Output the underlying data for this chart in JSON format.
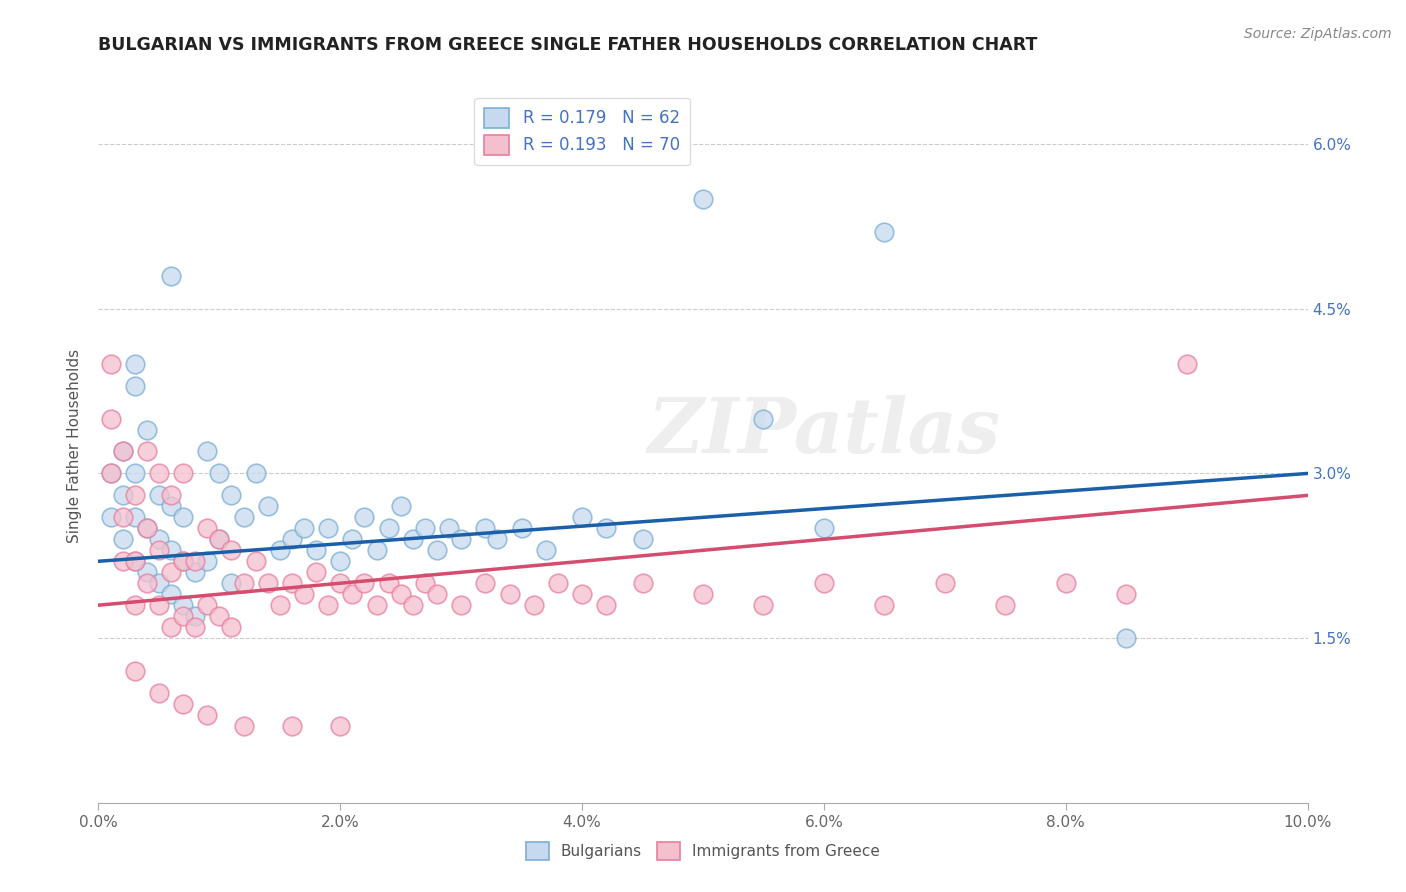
{
  "title": "BULGARIAN VS IMMIGRANTS FROM GREECE SINGLE FATHER HOUSEHOLDS CORRELATION CHART",
  "source": "Source: ZipAtlas.com",
  "ylabel": "Single Father Households",
  "xlim": [
    0.0,
    0.1
  ],
  "ylim": [
    0.0,
    0.065
  ],
  "xticks": [
    0.0,
    0.02,
    0.04,
    0.06,
    0.08,
    0.1
  ],
  "yticks": [
    0.0,
    0.015,
    0.03,
    0.045,
    0.06
  ],
  "right_ytick_labels": [
    "",
    "1.5%",
    "3.0%",
    "4.5%",
    "6.0%"
  ],
  "xtick_labels": [
    "0.0%",
    "2.0%",
    "4.0%",
    "6.0%",
    "8.0%",
    "10.0%"
  ],
  "legend_labels": [
    "Bulgarians",
    "Immigrants from Greece"
  ],
  "blue_edge_color": "#7bafd4",
  "pink_edge_color": "#e87fa0",
  "blue_face_color": "#c6d9ee",
  "pink_face_color": "#f5c0ce",
  "blue_line_color": "#1a5fa8",
  "pink_line_color": "#d44c6e",
  "watermark_text": "ZIPatlas",
  "bg_R": 0.179,
  "bg_N": 62,
  "gr_R": 0.193,
  "gr_N": 70,
  "bg_line_x0": 0.0,
  "bg_line_y0": 0.022,
  "bg_line_x1": 0.1,
  "bg_line_y1": 0.03,
  "gr_line_x0": 0.0,
  "gr_line_y0": 0.018,
  "gr_line_x1": 0.1,
  "gr_line_y1": 0.028,
  "bulgarians_x": [
    0.001,
    0.001,
    0.002,
    0.002,
    0.002,
    0.003,
    0.003,
    0.003,
    0.003,
    0.004,
    0.004,
    0.004,
    0.005,
    0.005,
    0.005,
    0.006,
    0.006,
    0.006,
    0.007,
    0.007,
    0.007,
    0.008,
    0.008,
    0.009,
    0.009,
    0.01,
    0.01,
    0.011,
    0.011,
    0.012,
    0.013,
    0.014,
    0.015,
    0.016,
    0.017,
    0.018,
    0.019,
    0.02,
    0.021,
    0.022,
    0.023,
    0.024,
    0.025,
    0.026,
    0.027,
    0.028,
    0.029,
    0.03,
    0.032,
    0.033,
    0.035,
    0.037,
    0.04,
    0.042,
    0.045,
    0.05,
    0.055,
    0.06,
    0.065,
    0.085,
    0.003,
    0.006
  ],
  "bulgarians_y": [
    0.026,
    0.03,
    0.024,
    0.028,
    0.032,
    0.022,
    0.026,
    0.03,
    0.04,
    0.021,
    0.025,
    0.034,
    0.02,
    0.024,
    0.028,
    0.019,
    0.023,
    0.027,
    0.018,
    0.022,
    0.026,
    0.017,
    0.021,
    0.022,
    0.032,
    0.024,
    0.03,
    0.02,
    0.028,
    0.026,
    0.03,
    0.027,
    0.023,
    0.024,
    0.025,
    0.023,
    0.025,
    0.022,
    0.024,
    0.026,
    0.023,
    0.025,
    0.027,
    0.024,
    0.025,
    0.023,
    0.025,
    0.024,
    0.025,
    0.024,
    0.025,
    0.023,
    0.026,
    0.025,
    0.024,
    0.055,
    0.035,
    0.025,
    0.052,
    0.015,
    0.038,
    0.048
  ],
  "greece_x": [
    0.001,
    0.001,
    0.001,
    0.002,
    0.002,
    0.002,
    0.003,
    0.003,
    0.003,
    0.004,
    0.004,
    0.004,
    0.005,
    0.005,
    0.005,
    0.006,
    0.006,
    0.006,
    0.007,
    0.007,
    0.007,
    0.008,
    0.008,
    0.009,
    0.009,
    0.01,
    0.01,
    0.011,
    0.011,
    0.012,
    0.013,
    0.014,
    0.015,
    0.016,
    0.017,
    0.018,
    0.019,
    0.02,
    0.021,
    0.022,
    0.023,
    0.024,
    0.025,
    0.026,
    0.027,
    0.028,
    0.03,
    0.032,
    0.034,
    0.036,
    0.038,
    0.04,
    0.042,
    0.045,
    0.05,
    0.055,
    0.06,
    0.065,
    0.07,
    0.075,
    0.08,
    0.085,
    0.09,
    0.003,
    0.005,
    0.007,
    0.009,
    0.012,
    0.016,
    0.02
  ],
  "greece_y": [
    0.03,
    0.035,
    0.04,
    0.022,
    0.026,
    0.032,
    0.018,
    0.022,
    0.028,
    0.02,
    0.025,
    0.032,
    0.018,
    0.023,
    0.03,
    0.016,
    0.021,
    0.028,
    0.017,
    0.022,
    0.03,
    0.016,
    0.022,
    0.018,
    0.025,
    0.017,
    0.024,
    0.016,
    0.023,
    0.02,
    0.022,
    0.02,
    0.018,
    0.02,
    0.019,
    0.021,
    0.018,
    0.02,
    0.019,
    0.02,
    0.018,
    0.02,
    0.019,
    0.018,
    0.02,
    0.019,
    0.018,
    0.02,
    0.019,
    0.018,
    0.02,
    0.019,
    0.018,
    0.02,
    0.019,
    0.018,
    0.02,
    0.018,
    0.02,
    0.018,
    0.02,
    0.019,
    0.04,
    0.012,
    0.01,
    0.009,
    0.008,
    0.007,
    0.007,
    0.007
  ]
}
